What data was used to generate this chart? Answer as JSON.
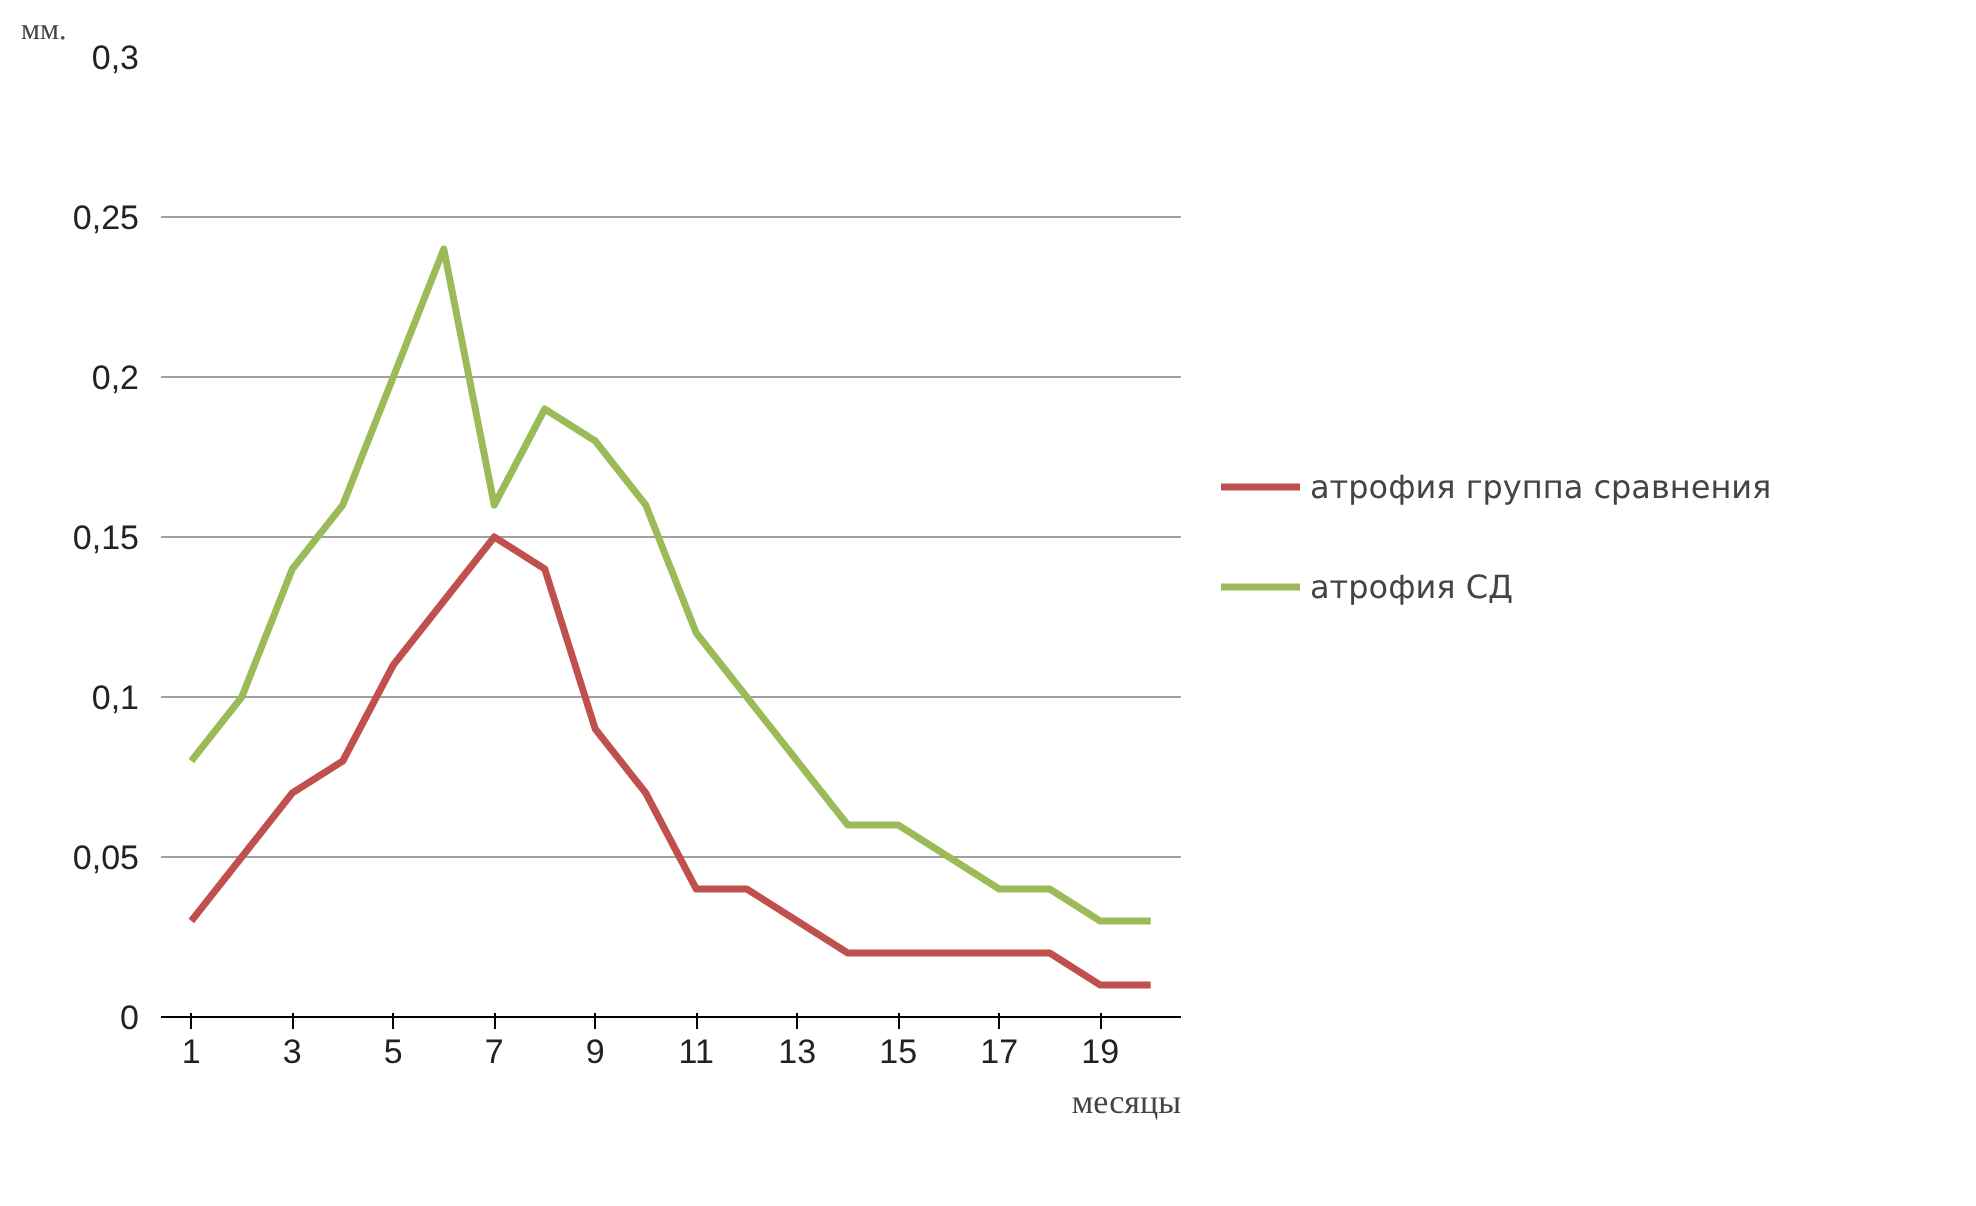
{
  "chart_data": {
    "type": "line",
    "ylabel": "мм.",
    "xlabel": "месяцы",
    "x": [
      1,
      2,
      3,
      4,
      5,
      6,
      7,
      8,
      9,
      10,
      11,
      12,
      13,
      14,
      15,
      16,
      17,
      18,
      19,
      20
    ],
    "series": [
      {
        "name": "атрофия группа сравнения",
        "color": "#c0504d",
        "values": [
          0.03,
          0.05,
          0.07,
          0.08,
          0.11,
          0.13,
          0.15,
          0.14,
          0.09,
          0.07,
          0.04,
          0.04,
          0.03,
          0.02,
          0.02,
          0.02,
          0.02,
          0.02,
          0.01,
          0.01
        ]
      },
      {
        "name": "атрофия СД",
        "color": "#9bbb59",
        "values": [
          0.08,
          0.1,
          0.14,
          0.16,
          0.2,
          0.24,
          0.16,
          0.19,
          0.18,
          0.16,
          0.12,
          0.1,
          0.08,
          0.06,
          0.06,
          0.05,
          0.04,
          0.04,
          0.03,
          0.03
        ]
      }
    ],
    "xlim": [
      0.4,
      20.6
    ],
    "xticks": [
      1,
      3,
      5,
      7,
      9,
      11,
      13,
      15,
      17,
      19
    ],
    "ylim": [
      0,
      0.3
    ],
    "yticks": [
      {
        "value": 0,
        "label": "0"
      },
      {
        "value": 0.05,
        "label": "0,05"
      },
      {
        "value": 0.1,
        "label": "0,1"
      },
      {
        "value": 0.15,
        "label": "0,15"
      },
      {
        "value": 0.2,
        "label": "0,2"
      },
      {
        "value": 0.25,
        "label": "0,25"
      },
      {
        "value": 0.3,
        "label": "0,3"
      }
    ],
    "grid": "y",
    "legend": "right",
    "marker": "none",
    "line_style": "solid"
  }
}
